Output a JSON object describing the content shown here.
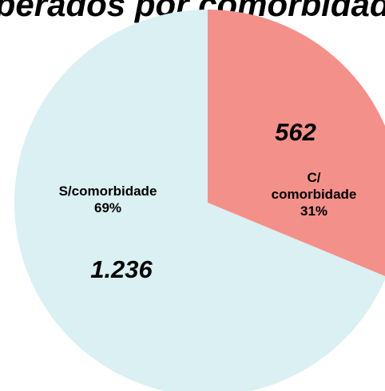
{
  "chart_data": {
    "type": "pie",
    "title": "uperados por comorbidade",
    "categories": [
      "C/ comorbidade",
      "S/comorbidade"
    ],
    "values": [
      562,
      1236
    ],
    "value_labels": [
      "562",
      "1.236"
    ],
    "percentages": [
      31,
      69
    ],
    "percentage_labels": [
      "31%",
      "69%"
    ],
    "colors": [
      "#f4908a",
      "#daf0f3"
    ]
  }
}
